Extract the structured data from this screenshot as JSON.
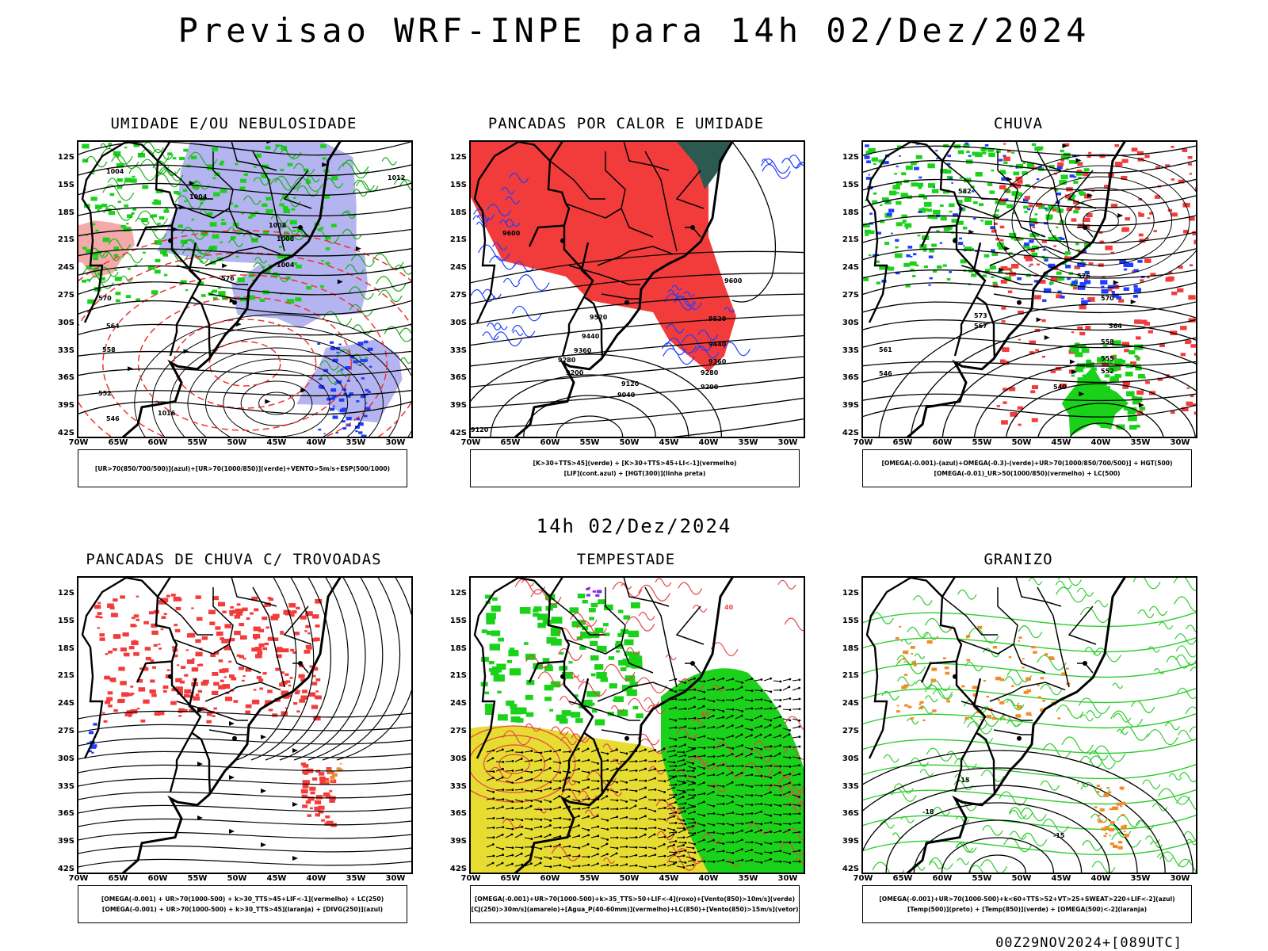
{
  "title": "Previsao WRF-INPE  para 14h 02/Dez/2024",
  "mid_date": "14h 02/Dez/2024",
  "run_label": "00Z29NOV2024+[089UTC]",
  "axes": {
    "lat_labels": [
      "12S",
      "15S",
      "18S",
      "21S",
      "24S",
      "27S",
      "30S",
      "33S",
      "36S",
      "39S",
      "42S"
    ],
    "lon_labels": [
      "70W",
      "65W",
      "60W",
      "55W",
      "50W",
      "45W",
      "40W",
      "35W",
      "30W"
    ]
  },
  "colors": {
    "red_fill": "#f23c3c",
    "green_fill": "#19d219",
    "lavender": "#b4b4f0",
    "blue": "#1e3cff",
    "yellow": "#e6dc32",
    "orange": "#f08c28",
    "teal": "#2d5a50"
  },
  "panels": [
    {
      "title": "UMIDADE E/OU NEBULOSIDADE",
      "legend": [
        "[UR>70(850/700/500)](azul)+[UR>70(1000/850)](verde)+VENTO>5m/s+ESP(500/1000)"
      ],
      "contour_labels": [
        "1004",
        "1004",
        "1008",
        "1012",
        "1008",
        "1004",
        "576",
        "570",
        "564",
        "558",
        "552",
        "546",
        "1016"
      ]
    },
    {
      "title": "PANCADAS POR CALOR E UMIDADE",
      "legend": [
        "[K>30+TTS>45](verde) + [K>30+TTS>45+LI<-1](vermelho)",
        "[LIF](cont.azul) + [HGT(300)](linha preta)"
      ],
      "contour_labels": [
        "9600",
        "9600",
        "9520",
        "9520",
        "9440",
        "9440",
        "9360",
        "9360",
        "9280",
        "9280",
        "9200",
        "9200",
        "9120",
        "9040",
        "9120"
      ]
    },
    {
      "title": "CHUVA",
      "legend": [
        "[OMEGA(-0.001)-(azul)+OMEGA(-0.3)-(verde)+UR>70(1000/850/700/500)] + HGT(500)",
        "[OMEGA(-0.01)_UR>50(1000/850)(vermelho) + LC(500)"
      ],
      "contour_labels": [
        "582",
        "576",
        "573",
        "570",
        "567",
        "564",
        "561",
        "558",
        "555",
        "552",
        "546",
        "540"
      ]
    },
    {
      "title": "PANCADAS DE CHUVA C/ TROVOADAS",
      "legend": [
        "[OMEGA(-0.001) + UR>70(1000-500) + k>30_TTS>45+LIF<-1](vermelho) + LC(250)",
        "[OMEGA(-0.001) + UR>70(1000-500) + k>30_TTS>45](laranja) + [DIVG(250)](azul)"
      ],
      "contour_labels": []
    },
    {
      "title": "TEMPESTADE",
      "legend": [
        "[OMEGA(-0.001)+UR>70(1000-500)+k>35_TTS>50+LIF<-4](roxo)+[Vento(850)>10m/s](verde)",
        "[CJ(250)>30m/s](amarelo)+[Agua_P(40-60mm)](vermelho)+LC(850)+[Vento(850)>15m/s](vetor)"
      ],
      "contour_labels": [
        "40",
        "40"
      ]
    },
    {
      "title": "GRANIZO",
      "legend": [
        "[OMEGA(-0.001)+UR>70(1000-500)+k<60+TTS>52+VT>25+SWEAT>220+LIF<-2](azul)",
        "[Temp(500)](preto) + [Temp(850)](verde) + [OMEGA(500)<-2](laranja)"
      ],
      "contour_labels": [
        "-15",
        "-18",
        "-15"
      ]
    }
  ]
}
